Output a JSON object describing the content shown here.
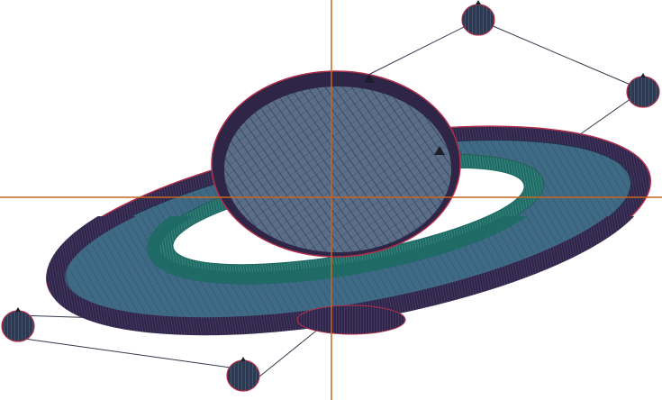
{
  "view": {
    "mode": "embroidery-stitch-preview",
    "colors": {
      "background": "#ffffff",
      "crosshair": "#c8641e",
      "outline_red": "#b0304a",
      "outer_ring": "#2e2547",
      "ring_fill": "#3f6a86",
      "inner_ring": "#1f6a65",
      "planet_fill": "#5b6e88",
      "planet_hatch": "#2b3448",
      "jump_line": "#333a4a"
    }
  },
  "handles": [
    {
      "name": "handle-top"
    },
    {
      "name": "handle-right"
    },
    {
      "name": "handle-left"
    },
    {
      "name": "handle-bottom"
    }
  ]
}
